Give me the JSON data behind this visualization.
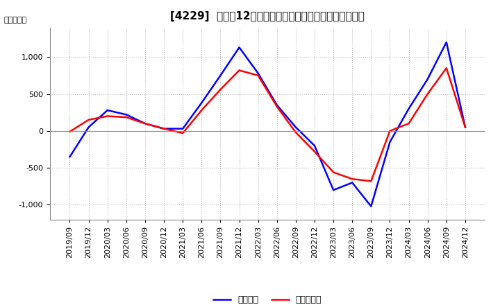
{
  "title": "[4229]  利益だ12か月移動合計の対前年同期増減額の推移",
  "ylabel": "（百万円）",
  "legend_labels": [
    "経常利益",
    "当期純利益"
  ],
  "line_colors": [
    "#0000ff",
    "#ff0000"
  ],
  "ylim": [
    -1200,
    1400
  ],
  "yticks": [
    -1000,
    -500,
    0,
    500,
    1000
  ],
  "x_labels": [
    "2019/09",
    "2019/12",
    "2020/03",
    "2020/06",
    "2020/09",
    "2020/12",
    "2021/03",
    "2021/06",
    "2021/09",
    "2021/12",
    "2022/03",
    "2022/06",
    "2022/09",
    "2022/12",
    "2023/03",
    "2023/06",
    "2023/09",
    "2023/12",
    "2024/03",
    "2024/06",
    "2024/09",
    "2024/12"
  ],
  "series_keiei": [
    -350,
    50,
    280,
    220,
    100,
    30,
    30,
    380,
    750,
    1130,
    780,
    350,
    50,
    -200,
    -800,
    -700,
    -1020,
    -150,
    300,
    700,
    1200,
    50
  ],
  "series_touki": [
    -10,
    150,
    200,
    185,
    100,
    30,
    -30,
    280,
    560,
    820,
    750,
    330,
    -20,
    -280,
    -560,
    -650,
    -680,
    0,
    100,
    500,
    850,
    50
  ],
  "background_color": "#ffffff",
  "grid_color": "#bbbbbb",
  "title_fontsize": 11,
  "tick_fontsize": 8,
  "legend_fontsize": 9
}
